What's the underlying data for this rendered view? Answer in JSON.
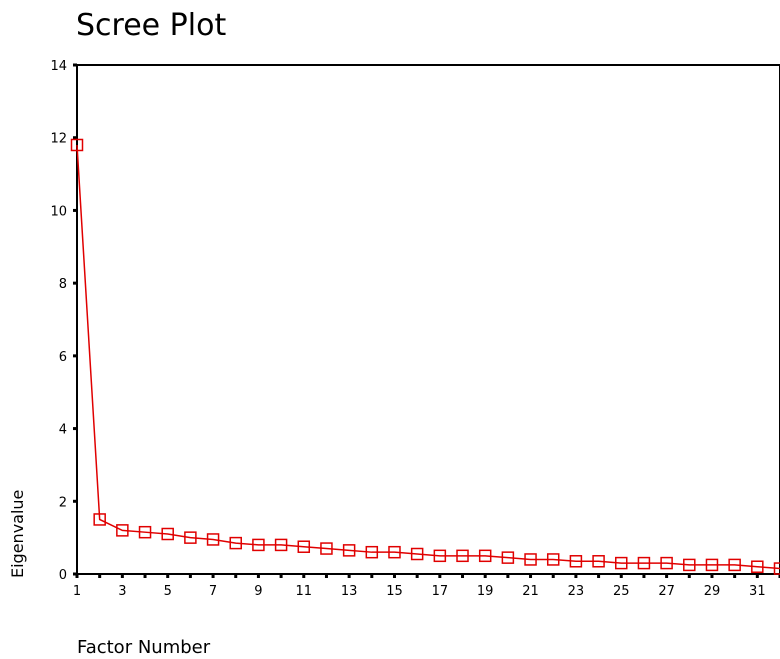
{
  "chart_data": {
    "type": "line",
    "title": "Scree Plot",
    "xlabel": "Factor Number",
    "ylabel": "Eigenvalue",
    "xlim": [
      1,
      32
    ],
    "ylim": [
      0,
      14
    ],
    "yticks": [
      0,
      2,
      4,
      6,
      8,
      10,
      12,
      14
    ],
    "xticks": [
      1,
      3,
      5,
      7,
      9,
      11,
      13,
      15,
      17,
      19,
      21,
      23,
      25,
      27,
      29,
      31
    ],
    "grid": false,
    "series": [
      {
        "color": "#e00000",
        "marker": "open-square",
        "x": [
          1,
          2,
          3,
          4,
          5,
          6,
          7,
          8,
          9,
          10,
          11,
          12,
          13,
          14,
          15,
          16,
          17,
          18,
          19,
          20,
          21,
          22,
          23,
          24,
          25,
          26,
          27,
          28,
          29,
          30,
          31,
          32
        ],
        "values": [
          11.8,
          1.5,
          1.2,
          1.15,
          1.1,
          1.0,
          0.95,
          0.85,
          0.8,
          0.8,
          0.75,
          0.7,
          0.65,
          0.6,
          0.6,
          0.55,
          0.5,
          0.5,
          0.5,
          0.45,
          0.4,
          0.4,
          0.35,
          0.35,
          0.3,
          0.3,
          0.3,
          0.25,
          0.25,
          0.25,
          0.2,
          0.15
        ]
      }
    ]
  }
}
